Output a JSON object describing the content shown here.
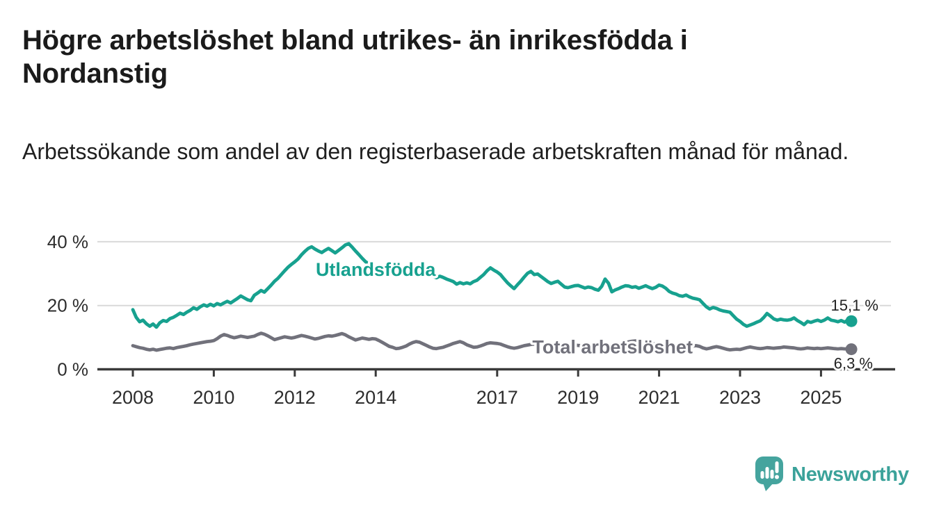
{
  "header": {
    "title": "Högre arbetslöshet bland utrikes- än inrikesfödda i Nordanstig",
    "subtitle": "Arbetssökande som andel av den registerbaserade arbetskraften månad för månad."
  },
  "branding": {
    "name": "Newsworthy",
    "logo_icon": "speech-bubble-bar-chart-icon",
    "brand_color": "#45a49e"
  },
  "chart_data": {
    "type": "line",
    "title": "",
    "xlabel": "",
    "ylabel": "",
    "grid": "horizontal",
    "x_unit": "month",
    "x_start": "2008-01",
    "x_end": "2025-10",
    "x_ticks": [
      2008,
      2010,
      2012,
      2014,
      2017,
      2019,
      2021,
      2023,
      2025
    ],
    "y_ticks": [
      {
        "value": 0,
        "label": "0 %"
      },
      {
        "value": 20,
        "label": "20 %"
      },
      {
        "value": 40,
        "label": "40 %"
      }
    ],
    "ylim": [
      0,
      43
    ],
    "series": [
      {
        "name": "Utlandsfödda",
        "color": "#17a18f",
        "end_label": "15,1 %",
        "end_value": 15.1,
        "label_anchor": {
          "year": 2014.0,
          "value": 31.3
        },
        "values": [
          18.7,
          16.3,
          14.9,
          15.4,
          14.3,
          13.5,
          14.2,
          13.2,
          14.6,
          15.3,
          15.0,
          15.9,
          16.3,
          16.9,
          17.6,
          17.2,
          17.9,
          18.5,
          19.3,
          18.8,
          19.6,
          20.2,
          19.8,
          20.4,
          19.9,
          20.6,
          20.2,
          20.8,
          21.3,
          20.8,
          21.5,
          22.2,
          23.0,
          22.4,
          21.8,
          21.5,
          23.2,
          23.9,
          24.7,
          24.2,
          25.3,
          26.4,
          27.6,
          28.5,
          29.7,
          30.9,
          32.0,
          32.9,
          33.7,
          34.6,
          35.9,
          37.0,
          37.9,
          38.4,
          37.7,
          37.1,
          36.6,
          37.3,
          37.9,
          37.2,
          36.5,
          37.3,
          38.1,
          39.0,
          39.4,
          38.3,
          37.1,
          36.0,
          34.8,
          33.7,
          33.1,
          32.5,
          31.9,
          31.3,
          30.5,
          29.7,
          30.3,
          30.0,
          29.5,
          30.1,
          30.7,
          31.2,
          30.8,
          30.4,
          30.8,
          31.2,
          30.6,
          30.1,
          29.6,
          29.1,
          28.7,
          29.2,
          28.8,
          28.3,
          27.9,
          27.5,
          26.7,
          27.2,
          26.8,
          27.1,
          26.8,
          27.5,
          27.9,
          28.8,
          29.7,
          30.9,
          31.8,
          31.1,
          30.5,
          29.7,
          28.4,
          27.2,
          26.2,
          25.3,
          26.5,
          27.6,
          28.9,
          30.1,
          30.7,
          29.7,
          29.9,
          29.1,
          28.3,
          27.5,
          26.9,
          27.3,
          27.6,
          26.7,
          25.8,
          25.6,
          25.9,
          26.2,
          26.3,
          25.9,
          25.5,
          25.8,
          25.6,
          25.1,
          24.8,
          26.0,
          28.3,
          27.0,
          24.3,
          24.9,
          25.3,
          25.8,
          26.2,
          26.1,
          25.7,
          25.9,
          25.4,
          25.8,
          26.2,
          25.7,
          25.3,
          25.7,
          26.4,
          26.1,
          25.4,
          24.4,
          23.9,
          23.6,
          23.1,
          22.9,
          23.3,
          22.7,
          22.3,
          22.1,
          21.8,
          20.7,
          19.6,
          18.9,
          19.4,
          19.1,
          18.6,
          18.3,
          18.1,
          17.9,
          16.8,
          15.7,
          15.0,
          14.1,
          13.5,
          13.9,
          14.3,
          14.8,
          15.2,
          16.2,
          17.5,
          16.7,
          15.8,
          15.4,
          15.7,
          15.5,
          15.4,
          15.6,
          16.1,
          15.3,
          14.7,
          14.0,
          15.0,
          14.7,
          15.1,
          15.4,
          15.0,
          15.4,
          16.1,
          15.4,
          15.2,
          14.9,
          15.3,
          14.8,
          15.5,
          15.1
        ]
      },
      {
        "name": "Total arbetslöshet",
        "color": "#71717b",
        "end_label": "6,3 %",
        "end_value": 6.3,
        "label_anchor": {
          "year": 2019.85,
          "value": 7.0
        },
        "values": [
          7.4,
          7.1,
          6.8,
          6.6,
          6.3,
          6.1,
          6.3,
          6.0,
          6.2,
          6.4,
          6.6,
          6.7,
          6.5,
          6.8,
          7.0,
          7.2,
          7.4,
          7.7,
          7.9,
          8.1,
          8.3,
          8.5,
          8.7,
          8.8,
          9.0,
          9.6,
          10.4,
          10.9,
          10.6,
          10.2,
          9.9,
          10.1,
          10.4,
          10.2,
          10.0,
          10.2,
          10.4,
          10.9,
          11.3,
          11.0,
          10.5,
          9.9,
          9.3,
          9.6,
          9.9,
          10.2,
          10.0,
          9.8,
          10.0,
          10.3,
          10.6,
          10.4,
          10.1,
          9.8,
          9.5,
          9.7,
          10.0,
          10.3,
          10.5,
          10.4,
          10.6,
          10.9,
          11.2,
          10.8,
          10.2,
          9.7,
          9.2,
          9.5,
          9.8,
          9.6,
          9.4,
          9.6,
          9.5,
          9.0,
          8.4,
          7.8,
          7.2,
          6.9,
          6.5,
          6.6,
          6.9,
          7.3,
          7.9,
          8.4,
          8.7,
          8.5,
          8.0,
          7.5,
          7.0,
          6.6,
          6.5,
          6.7,
          6.9,
          7.3,
          7.7,
          8.1,
          8.4,
          8.7,
          8.3,
          7.7,
          7.3,
          6.9,
          7.0,
          7.3,
          7.7,
          8.1,
          8.3,
          8.2,
          8.1,
          7.9,
          7.5,
          7.1,
          6.8,
          6.6,
          6.8,
          7.1,
          7.4,
          7.6,
          7.8,
          7.9,
          7.8,
          7.6,
          7.4,
          7.2,
          7.0,
          6.8,
          6.9,
          7.1,
          7.3,
          7.4,
          7.5,
          7.6,
          7.5,
          7.4,
          7.2,
          7.1,
          7.0,
          6.9,
          7.0,
          7.2,
          7.3,
          7.4,
          7.5,
          7.6,
          7.7,
          7.9,
          8.2,
          8.6,
          8.8,
          8.9,
          8.8,
          8.6,
          8.4,
          8.2,
          8.0,
          7.9,
          7.8,
          7.7,
          7.5,
          7.3,
          7.2,
          7.1,
          7.0,
          7.0,
          7.1,
          7.2,
          7.3,
          7.4,
          7.2,
          6.7,
          6.4,
          6.6,
          6.9,
          7.1,
          6.9,
          6.6,
          6.3,
          6.1,
          6.2,
          6.3,
          6.2,
          6.5,
          6.8,
          7.0,
          6.8,
          6.6,
          6.5,
          6.6,
          6.8,
          6.7,
          6.6,
          6.7,
          6.8,
          7.0,
          6.9,
          6.8,
          6.7,
          6.5,
          6.4,
          6.5,
          6.7,
          6.6,
          6.5,
          6.6,
          6.5,
          6.6,
          6.7,
          6.6,
          6.5,
          6.4,
          6.5,
          6.4,
          6.4,
          6.3
        ]
      }
    ]
  }
}
